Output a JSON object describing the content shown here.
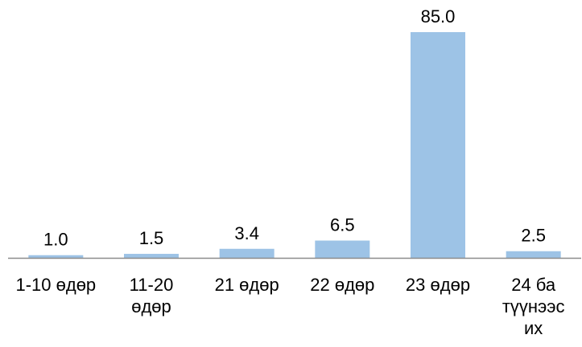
{
  "chart_data": {
    "type": "bar",
    "categories": [
      [
        "1-10 өдөр"
      ],
      [
        "11-20",
        "өдөр"
      ],
      [
        "21 өдөр"
      ],
      [
        "22 өдөр"
      ],
      [
        "23 өдөр"
      ],
      [
        "24 ба",
        "түүнээс",
        "их"
      ]
    ],
    "values": [
      1.0,
      1.5,
      3.4,
      6.5,
      85.0,
      2.5
    ],
    "value_labels": [
      "1.0",
      "1.5",
      "3.4",
      "6.5",
      "85.0",
      "2.5"
    ],
    "title": "",
    "xlabel": "",
    "ylabel": "",
    "ylim": [
      0,
      100
    ],
    "grid": false,
    "legend": "none",
    "colors": {
      "bar": "#9dc3e6",
      "axis": "#8c8c8c",
      "text": "#000000"
    }
  }
}
